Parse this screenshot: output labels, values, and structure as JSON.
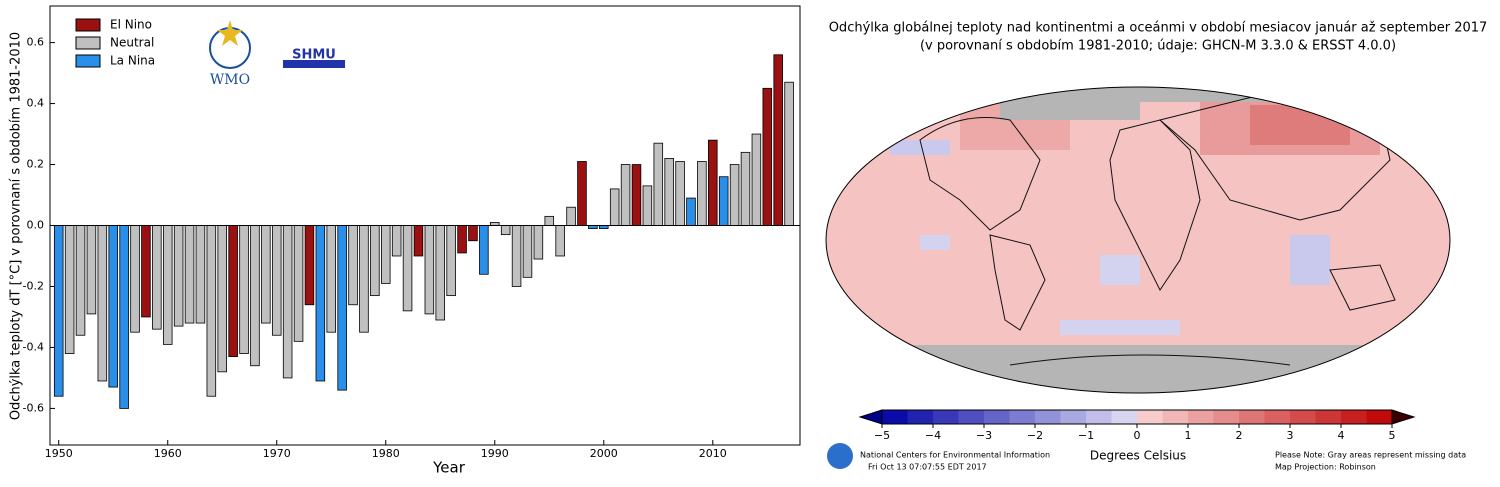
{
  "chart_data": [
    {
      "type": "bar",
      "xlabel": "Year",
      "ylabel": "Odchýlka teploty dT [°C] v porovnaní s obdobím 1981-2010",
      "logos": [
        "WMO",
        "SHMU"
      ],
      "legend": "upper left",
      "xlim": [
        1949.2,
        2018
      ],
      "xticks": [
        1950,
        1960,
        1970,
        1980,
        1990,
        2000,
        2010
      ],
      "ylim": [
        -0.72,
        0.72
      ],
      "yticks": [
        -0.6,
        -0.4,
        -0.2,
        {
          "value": 0,
          "label": "0.0"
        },
        0.2,
        0.4,
        0.6
      ],
      "series": [
        {
          "name": "El Nino",
          "color": "#9b1010",
          "x": [
            1958,
            1966,
            1973,
            1983,
            1987,
            1988,
            1998,
            2003,
            2010,
            2015,
            2016
          ],
          "values": [
            -0.3,
            -0.43,
            -0.26,
            -0.1,
            -0.09,
            -0.05,
            0.21,
            0.2,
            0.28,
            0.45,
            0.56
          ]
        },
        {
          "name": "Neutral",
          "color": "#c0c0c0",
          "x": [
            1951,
            1952,
            1953,
            1954,
            1957,
            1959,
            1960,
            1961,
            1962,
            1963,
            1964,
            1965,
            1967,
            1968,
            1969,
            1970,
            1971,
            1972,
            1975,
            1977,
            1978,
            1979,
            1980,
            1981,
            1982,
            1984,
            1985,
            1986,
            1990,
            1991,
            1992,
            1993,
            1994,
            1995,
            1996,
            1997,
            2001,
            2002,
            2004,
            2005,
            2006,
            2007,
            2009,
            2012,
            2013,
            2014,
            2017
          ],
          "values": [
            -0.42,
            -0.36,
            -0.29,
            -0.51,
            -0.35,
            -0.34,
            -0.39,
            -0.33,
            -0.32,
            -0.32,
            -0.56,
            -0.48,
            -0.42,
            -0.46,
            -0.32,
            -0.36,
            -0.5,
            -0.38,
            -0.35,
            -0.26,
            -0.35,
            -0.23,
            -0.19,
            -0.1,
            -0.28,
            -0.29,
            -0.31,
            -0.23,
            0.01,
            -0.03,
            -0.2,
            -0.17,
            -0.11,
            0.03,
            -0.1,
            0.06,
            0.12,
            0.2,
            0.13,
            0.27,
            0.22,
            0.21,
            0.21,
            0.2,
            0.24,
            0.3,
            0.47
          ]
        },
        {
          "name": "La Nina",
          "color": "#2a8fe8",
          "x": [
            1950,
            1955,
            1956,
            1974,
            1976,
            1989,
            1999,
            2000,
            2008,
            2011
          ],
          "values": [
            -0.56,
            -0.53,
            -0.6,
            -0.51,
            -0.54,
            -0.16,
            -0.01,
            -0.01,
            0.09,
            0.16
          ]
        }
      ]
    },
    {
      "type": "map",
      "title": "Odchýlka globálnej teploty nad kontinentmi a oceánmi v období mesiacov január až september 2017",
      "subtitle": "(v porovnaní s obdobím 1981-2010; údaje: GHCN-M 3.3.0 & ERSST 4.0.0)",
      "colorbar_label": "Degrees Celsius",
      "clim": [
        -5,
        5
      ],
      "cticks": [
        {
          "value": -5,
          "label": "−5"
        },
        {
          "value": -4,
          "label": "−4"
        },
        {
          "value": -3,
          "label": "−3"
        },
        {
          "value": -2,
          "label": "−2"
        },
        {
          "value": -1,
          "label": "−1"
        },
        0,
        1,
        2,
        3,
        4,
        5
      ],
      "source": "National Centers for Environmental Information",
      "timestamp": "Fri Oct 13 07:07:55 EDT 2017",
      "notes": [
        "Please Note: Gray areas represent missing data",
        "Map Projection: Robinson"
      ]
    }
  ]
}
